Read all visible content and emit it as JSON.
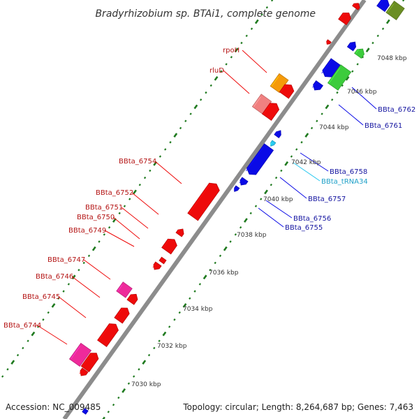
{
  "title": "Bradyrhizobium sp. BTAi1, complete genome",
  "footer": {
    "accession": "Accession: NC_009485",
    "summary": "Topology: circular; Length: 8,264,687 bp; Genes: 7,463"
  },
  "colors": {
    "backbone": "#8c8c8c",
    "tick": "#1f7a1f",
    "ruler_text": "#333333",
    "red": "#ee0a0a",
    "blue": "#0a0ae6",
    "pink": "#ee2a9a",
    "salmon": "#f08080",
    "orange": "#f59a0a",
    "green": "#3ccc3c",
    "olive": "#6b8e23",
    "cyan": "#28c8f0",
    "red_label": "#b41414",
    "blue_label": "#1414a0",
    "cyan_label": "#1ea0c8"
  },
  "ruler": [
    "7030 kbp",
    "7032 kbp",
    "7034 kbp",
    "7036 kbp",
    "7038 kbp",
    "7040 kbp",
    "7042 kbp",
    "7044 kbp",
    "7046 kbp",
    "7048 kbp"
  ],
  "gene_labels": {
    "left": [
      "BBta_6744",
      "BBta_6745",
      "BBta_6746",
      "BBta_6747",
      "BBta_6749",
      "BBta_6750",
      "BBta_6751",
      "BBta_6752",
      "BBta_6754",
      "rluD",
      "rpoH"
    ],
    "right": [
      "BBta_6755",
      "BBta_6756",
      "BBta_6757",
      "BBta_tRNA34",
      "BBta_6758",
      "BBta_6761",
      "BBta_6762"
    ]
  }
}
